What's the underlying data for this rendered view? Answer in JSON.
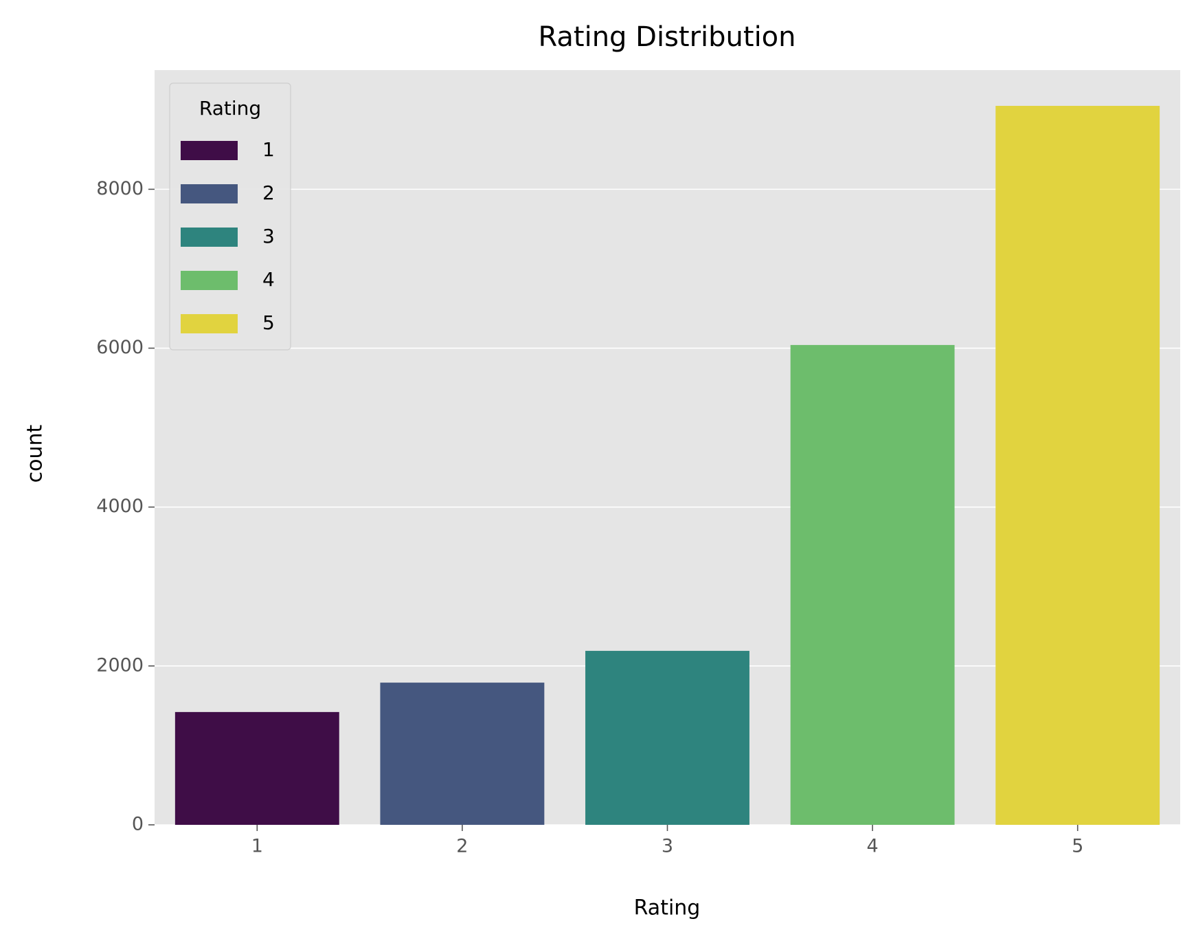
{
  "chart_data": {
    "type": "bar",
    "title": "Rating Distribution",
    "x_label": "Rating",
    "y_label": "count",
    "categories": [
      "1",
      "2",
      "3",
      "4",
      "5"
    ],
    "values": [
      1420,
      1790,
      2190,
      6040,
      9050
    ],
    "colors": [
      "#3f0d47",
      "#45577f",
      "#2e847e",
      "#6dbd6c",
      "#e1d33f"
    ],
    "legend_title": "Rating",
    "legend_position": "upper left",
    "ylim": [
      0,
      9500
    ],
    "yticks": [
      0,
      2000,
      4000,
      6000,
      8000
    ],
    "grid": true
  }
}
